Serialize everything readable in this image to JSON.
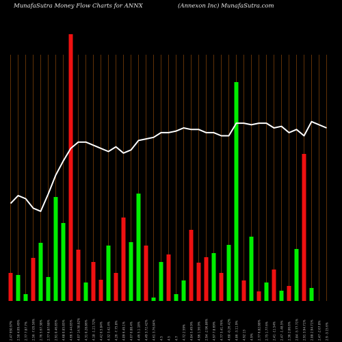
{
  "header": {
    "title_left": "MunafaSutra  Money Flow  Charts for ANNX",
    "title_right": "(Annexon  Inc) MunafaSutra.com"
  },
  "colors": {
    "background": "#000000",
    "up": "#00ee00",
    "down": "#ee1111",
    "gridline": "#a0520a",
    "line": "#ffffff",
    "label": "#bbbbbb"
  },
  "chart_data": {
    "type": "bar",
    "title": "MunafaSutra  Money Flow  Charts for ANNX",
    "subtitle": "(Annexon  Inc) MunafaSutra.com",
    "gridlines": true,
    "x_labels": [
      "2.47 950.97%",
      "2.58 4.09.49%",
      "2.77 7.87.7%",
      "2.56 -7.05.56%",
      "2.76 5.67.38%",
      "2.77 6.87.68%",
      "2.91 0.46.85%",
      "4.68 0.85.85%",
      "4.66 5.44.85%",
      "4.07 14.58.82%",
      "4.31 0.28.86%",
      "4.18 -1.21.72%",
      "4.42 0.5.84%",
      "4.32 3.42.4%",
      "4.26 -7.75.8%",
      "4.09 6.49.1%",
      "4.07 0.88.4%",
      "4.46 5.1.18%",
      "4.49 3.72.42%",
      "4.61 3.76.84%",
      "4.5",
      "4.5",
      "4.7",
      "4.72 2.59%",
      "4.84 5.49.9%",
      "4.96 1.56.9%",
      "2.94 -2.96.86%",
      "4.97 7.8.69%",
      "4.77 5.41.76%",
      "4.60 -0.26.42%",
      "4.86 -3.11.9%",
      "4.92 13",
      "4.9%",
      "2.77 6.82.88%",
      "2.75 1.77.6%",
      "2.41 -11.54%",
      "2.47 -1.48.5%",
      "2.36 2.06.6%",
      "2.84 -5.77.71%",
      "2.91 3.94.71%",
      "2.88 2.94.71%",
      "2.47 -2.67.8%",
      "2.9 -3.15.6%"
    ],
    "volume_bars": {
      "colors": [
        "red",
        "green",
        "green",
        "red",
        "green",
        "green",
        "green",
        "green",
        "red",
        "red",
        "green",
        "red",
        "red",
        "green",
        "red",
        "red",
        "green",
        "green",
        "red",
        "green",
        "green",
        "red",
        "green",
        "green",
        "red",
        "red",
        "red",
        "green",
        "red",
        "green",
        "green",
        "red",
        "green",
        "red",
        "green",
        "red",
        "green",
        "red",
        "green",
        "red",
        "green",
        "green",
        "red"
      ],
      "values": [
        41,
        38,
        10,
        63,
        85,
        35,
        152,
        114,
        390,
        75,
        27,
        57,
        31,
        81,
        41,
        122,
        86,
        157,
        81,
        5,
        57,
        68,
        10,
        30,
        104,
        56,
        64,
        70,
        41,
        82,
        320,
        30,
        94,
        14,
        27,
        46,
        15,
        22,
        76,
        215,
        19,
        0,
        0
      ]
    },
    "cumulative_line": [
      62,
      67,
      65,
      59,
      57,
      68,
      80,
      89,
      97,
      101,
      101,
      99,
      97,
      95,
      98,
      94,
      96,
      102,
      103,
      104,
      107,
      107,
      108,
      110,
      109,
      109,
      107,
      107,
      105,
      105,
      113,
      113,
      112,
      113,
      113,
      110,
      111,
      107,
      109,
      105,
      114,
      112,
      110
    ]
  }
}
